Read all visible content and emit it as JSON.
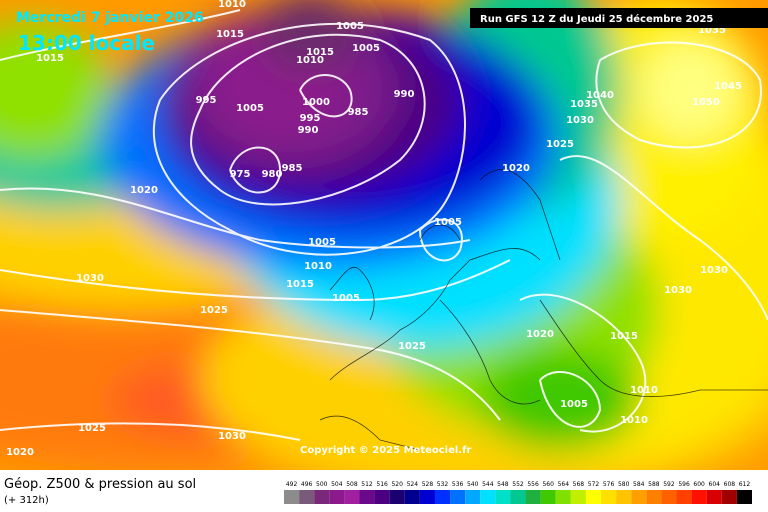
{
  "map": {
    "date": "Mercredi 7 janvier 2026",
    "time": "13:00 locale",
    "run": "Run GFS 12 Z du Jeudi 25 décembre 2025",
    "copyright": "Copyright © 2025 Meteociel.fr",
    "caption": "Géop. Z500 & pression au sol",
    "lead": "(+ 312h)",
    "isobar_labels": [
      "1010",
      "1015",
      "1015",
      "1005",
      "1005",
      "1015",
      "1010",
      "995",
      "1005",
      "1000",
      "995",
      "990",
      "985",
      "990",
      "975",
      "980",
      "985",
      "1020",
      "1020",
      "1025",
      "1035",
      "1030",
      "1040",
      "1050",
      "1045",
      "1035",
      "1005",
      "1005",
      "1010",
      "1015",
      "1005",
      "1030",
      "1025",
      "1025",
      "1020",
      "1015",
      "1030",
      "1030",
      "1010",
      "1010",
      "1005",
      "1025",
      "1030",
      "1020"
    ],
    "colorbar": {
      "values": [
        492,
        496,
        500,
        504,
        508,
        512,
        516,
        520,
        524,
        528,
        532,
        536,
        540,
        544,
        548,
        552,
        556,
        560,
        564,
        568,
        572,
        576,
        580,
        584,
        588,
        592,
        596,
        600,
        604,
        608,
        612
      ],
      "colors": [
        "#8c8c8c",
        "#7a5a7a",
        "#7a287a",
        "#8c1a8c",
        "#a020a0",
        "#6a0a8a",
        "#4b0082",
        "#1a0070",
        "#000090",
        "#0000d0",
        "#0030ff",
        "#0070ff",
        "#00a8ff",
        "#00e0ff",
        "#00e0c8",
        "#00c890",
        "#20b040",
        "#40c800",
        "#80e000",
        "#c0f000",
        "#ffff00",
        "#ffe000",
        "#ffc400",
        "#ffa000",
        "#ff8000",
        "#ff6000",
        "#ff4000",
        "#ff1000",
        "#d80000",
        "#a00000",
        "#000000"
      ]
    }
  }
}
